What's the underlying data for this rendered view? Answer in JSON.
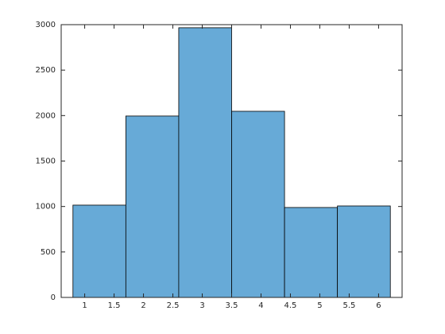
{
  "chart_data": {
    "type": "histogram",
    "bins": [
      0.8,
      1.7,
      2.6,
      3.5,
      4.4,
      5.3,
      6.2
    ],
    "values": [
      1015,
      1995,
      2966,
      2047,
      989,
      1006
    ],
    "color": "#67aad7",
    "edgecolor": "#000000",
    "xlim": [
      0.6,
      6.4
    ],
    "xticks": [
      1,
      1.5,
      2,
      2.5,
      3,
      3.5,
      4,
      4.5,
      5,
      5.5,
      6
    ],
    "ylim": [
      0,
      3000
    ],
    "yticks": [
      0,
      500,
      1000,
      1500,
      2000,
      2500,
      3000
    ]
  }
}
